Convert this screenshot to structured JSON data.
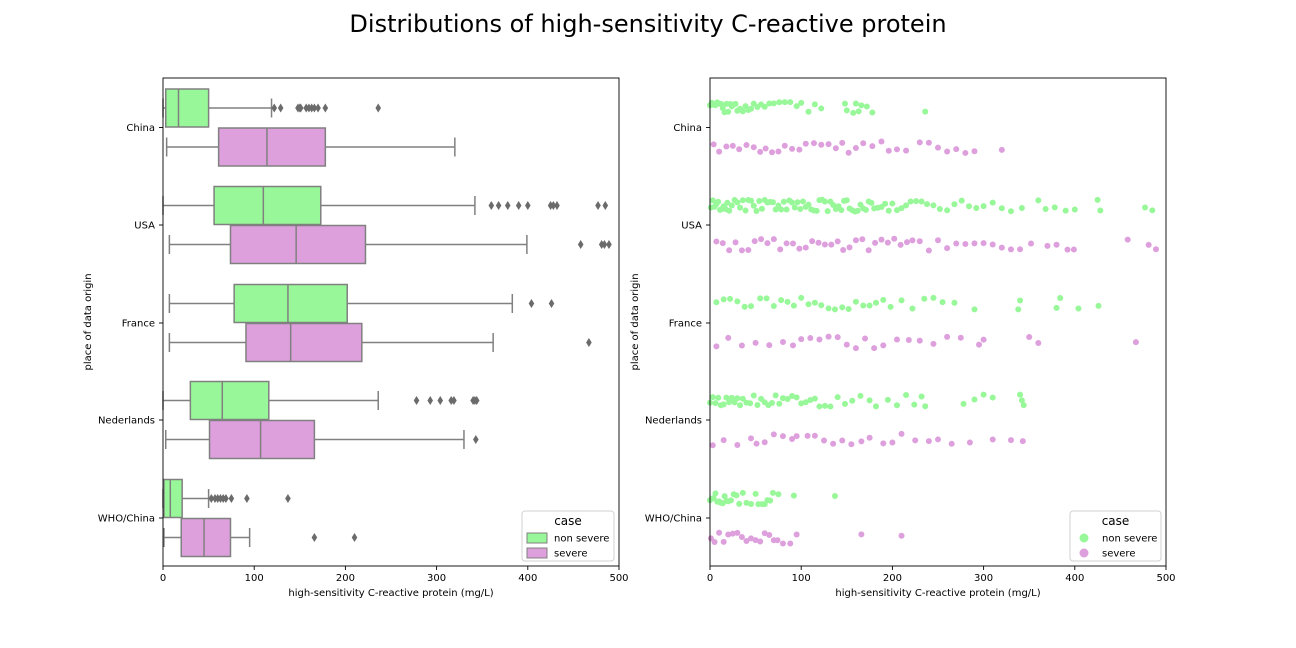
{
  "figure": {
    "title": "Distributions of high-sensitivity C-reactive protein",
    "colors": {
      "non_severe": "#98f798",
      "severe": "#dda0dd",
      "box_edge": "#808080",
      "outlier": "#6b6b6b"
    }
  },
  "chart_data": [
    {
      "type": "box",
      "orientation": "horizontal",
      "xlabel": "high-sensitivity C-reactive protein (mg/L)",
      "ylabel": "place of data origin",
      "xlim": [
        0,
        500
      ],
      "xticks": [
        "0",
        "100",
        "200",
        "300",
        "400",
        "500"
      ],
      "categories": [
        "China",
        "USA",
        "France",
        "Nederlands",
        "WHO/China"
      ],
      "legend": {
        "title": "case",
        "position": "lower right",
        "entries": [
          "non severe",
          "severe"
        ]
      },
      "series": [
        {
          "name": "non severe",
          "color": "#98f798",
          "boxes": [
            {
              "min": 0,
              "q1": 3,
              "median": 17,
              "q3": 50,
              "max": 119,
              "outliers": [
                122,
                129,
                148,
                150,
                151,
                157,
                160,
                163,
                166,
                170,
                178,
                236
              ]
            },
            {
              "min": 0,
              "q1": 56,
              "median": 110,
              "q3": 173,
              "max": 342,
              "outliers": [
                360,
                368,
                378,
                390,
                400,
                425,
                428,
                432,
                477,
                485
              ]
            },
            {
              "min": 7,
              "q1": 78,
              "median": 137,
              "q3": 202,
              "max": 383,
              "outliers": [
                404,
                426
              ]
            },
            {
              "min": 0,
              "q1": 30,
              "median": 65,
              "q3": 116,
              "max": 236,
              "outliers": [
                278,
                293,
                304,
                316,
                319,
                340,
                342,
                344
              ]
            },
            {
              "min": 0,
              "q1": 1,
              "median": 8,
              "q3": 21,
              "max": 50,
              "outliers": [
                53,
                57,
                60,
                63,
                66,
                69,
                75,
                92,
                137
              ]
            }
          ]
        },
        {
          "name": "severe",
          "color": "#dda0dd",
          "boxes": [
            {
              "min": 4,
              "q1": 61,
              "median": 114,
              "q3": 178,
              "max": 320,
              "outliers": []
            },
            {
              "min": 7,
              "q1": 74,
              "median": 146,
              "q3": 222,
              "max": 399,
              "outliers": [
                458,
                481,
                484,
                489
              ]
            },
            {
              "min": 7,
              "q1": 91,
              "median": 140,
              "q3": 218,
              "max": 362,
              "outliers": [
                467
              ]
            },
            {
              "min": 3,
              "q1": 51,
              "median": 107,
              "q3": 166,
              "max": 330,
              "outliers": [
                343
              ]
            },
            {
              "min": 1,
              "q1": 20,
              "median": 45,
              "q3": 74,
              "max": 95,
              "outliers": [
                166,
                210
              ]
            }
          ]
        }
      ]
    },
    {
      "type": "scatter",
      "subtype": "strip",
      "xlabel": "high-sensitivity C-reactive protein (mg/L)",
      "ylabel": "place of data origin",
      "xlim": [
        0,
        500
      ],
      "xticks": [
        "0",
        "100",
        "200",
        "300",
        "400",
        "500"
      ],
      "categories": [
        "China",
        "USA",
        "France",
        "Nederlands",
        "WHO/China"
      ],
      "legend": {
        "title": "case",
        "position": "lower right",
        "entries": [
          "non severe",
          "severe"
        ]
      },
      "series": [
        {
          "name": "non severe",
          "color": "#98f798",
          "points": [
            [
              0,
              2,
              4,
              6,
              8,
              10,
              12,
              14,
              16,
              18,
              20,
              22,
              24,
              26,
              28,
              30,
              33,
              36,
              39,
              42,
              45,
              48,
              52,
              56,
              60,
              65,
              70,
              76,
              82,
              88,
              95,
              100,
              108,
              115,
              122,
              148,
              150,
              157,
              160,
              163,
              166,
              172,
              178,
              236
            ],
            [
              1,
              3,
              5,
              7,
              9,
              11,
              13,
              15,
              17,
              19,
              21,
              24,
              27,
              30,
              33,
              36,
              39,
              42,
              45,
              48,
              51,
              54,
              57,
              60,
              63,
              66,
              69,
              72,
              75,
              78,
              81,
              84,
              87,
              90,
              93,
              96,
              99,
              102,
              105,
              108,
              111,
              114,
              117,
              120,
              123,
              126,
              129,
              132,
              135,
              138,
              141,
              144,
              147,
              150,
              153,
              156,
              159,
              162,
              165,
              168,
              171,
              174,
              177,
              180,
              184,
              188,
              192,
              196,
              200,
              205,
              210,
              215,
              220,
              226,
              232,
              238,
              245,
              252,
              260,
              268,
              276,
              284,
              292,
              300,
              310,
              320,
              330,
              342,
              360,
              368,
              378,
              390,
              400,
              425,
              428,
              477,
              485
            ],
            [
              7,
              15,
              22,
              30,
              38,
              45,
              55,
              62,
              70,
              78,
              85,
              92,
              100,
              108,
              115,
              122,
              130,
              137,
              145,
              152,
              160,
              168,
              175,
              182,
              190,
              198,
              210,
              222,
              235,
              245,
              255,
              268,
              290,
              338,
              340,
              380,
              384,
              404,
              426
            ],
            [
              0,
              3,
              6,
              9,
              12,
              15,
              18,
              21,
              24,
              27,
              30,
              33,
              36,
              40,
              44,
              48,
              52,
              56,
              60,
              64,
              68,
              72,
              76,
              80,
              85,
              90,
              95,
              100,
              105,
              110,
              115,
              120,
              126,
              132,
              140,
              148,
              156,
              165,
              175,
              182,
              195,
              205,
              215,
              224,
              232,
              236,
              278,
              290,
              300,
              310,
              340,
              342,
              344
            ],
            [
              0,
              2,
              4,
              6,
              8,
              10,
              12,
              14,
              16,
              18,
              20,
              23,
              26,
              29,
              32,
              36,
              40,
              45,
              50,
              53,
              57,
              60,
              63,
              66,
              69,
              75,
              92,
              137
            ]
          ]
        },
        {
          "name": "severe",
          "color": "#dda0dd",
          "points": [
            [
              4,
              10,
              18,
              25,
              32,
              40,
              48,
              55,
              61,
              68,
              75,
              82,
              90,
              98,
              105,
              114,
              122,
              130,
              138,
              145,
              152,
              160,
              168,
              178,
              188,
              196,
              205,
              215,
              230,
              240,
              250,
              260,
              270,
              280,
              290,
              320
            ],
            [
              7,
              14,
              21,
              28,
              35,
              42,
              49,
              56,
              63,
              70,
              77,
              84,
              91,
              98,
              105,
              112,
              119,
              126,
              133,
              140,
              146,
              153,
              160,
              167,
              174,
              181,
              188,
              195,
              202,
              209,
              216,
              222,
              230,
              240,
              250,
              260,
              270,
              280,
              290,
              300,
              310,
              320,
              330,
              340,
              352,
              370,
              380,
              392,
              399,
              458,
              481,
              489
            ],
            [
              7,
              20,
              35,
              50,
              65,
              80,
              91,
              100,
              110,
              120,
              130,
              140,
              150,
              160,
              170,
              180,
              190,
              205,
              218,
              230,
              245,
              260,
              275,
              295,
              300,
              350,
              360,
              467
            ],
            [
              3,
              15,
              30,
              45,
              51,
              60,
              70,
              80,
              90,
              95,
              107,
              115,
              125,
              135,
              145,
              155,
              166,
              175,
              190,
              200,
              210,
              225,
              240,
              250,
              265,
              285,
              310,
              330,
              343
            ],
            [
              1,
              5,
              10,
              15,
              20,
              25,
              30,
              35,
              40,
              45,
              50,
              55,
              60,
              65,
              70,
              74,
              80,
              88,
              95,
              166,
              210
            ]
          ]
        }
      ]
    }
  ]
}
